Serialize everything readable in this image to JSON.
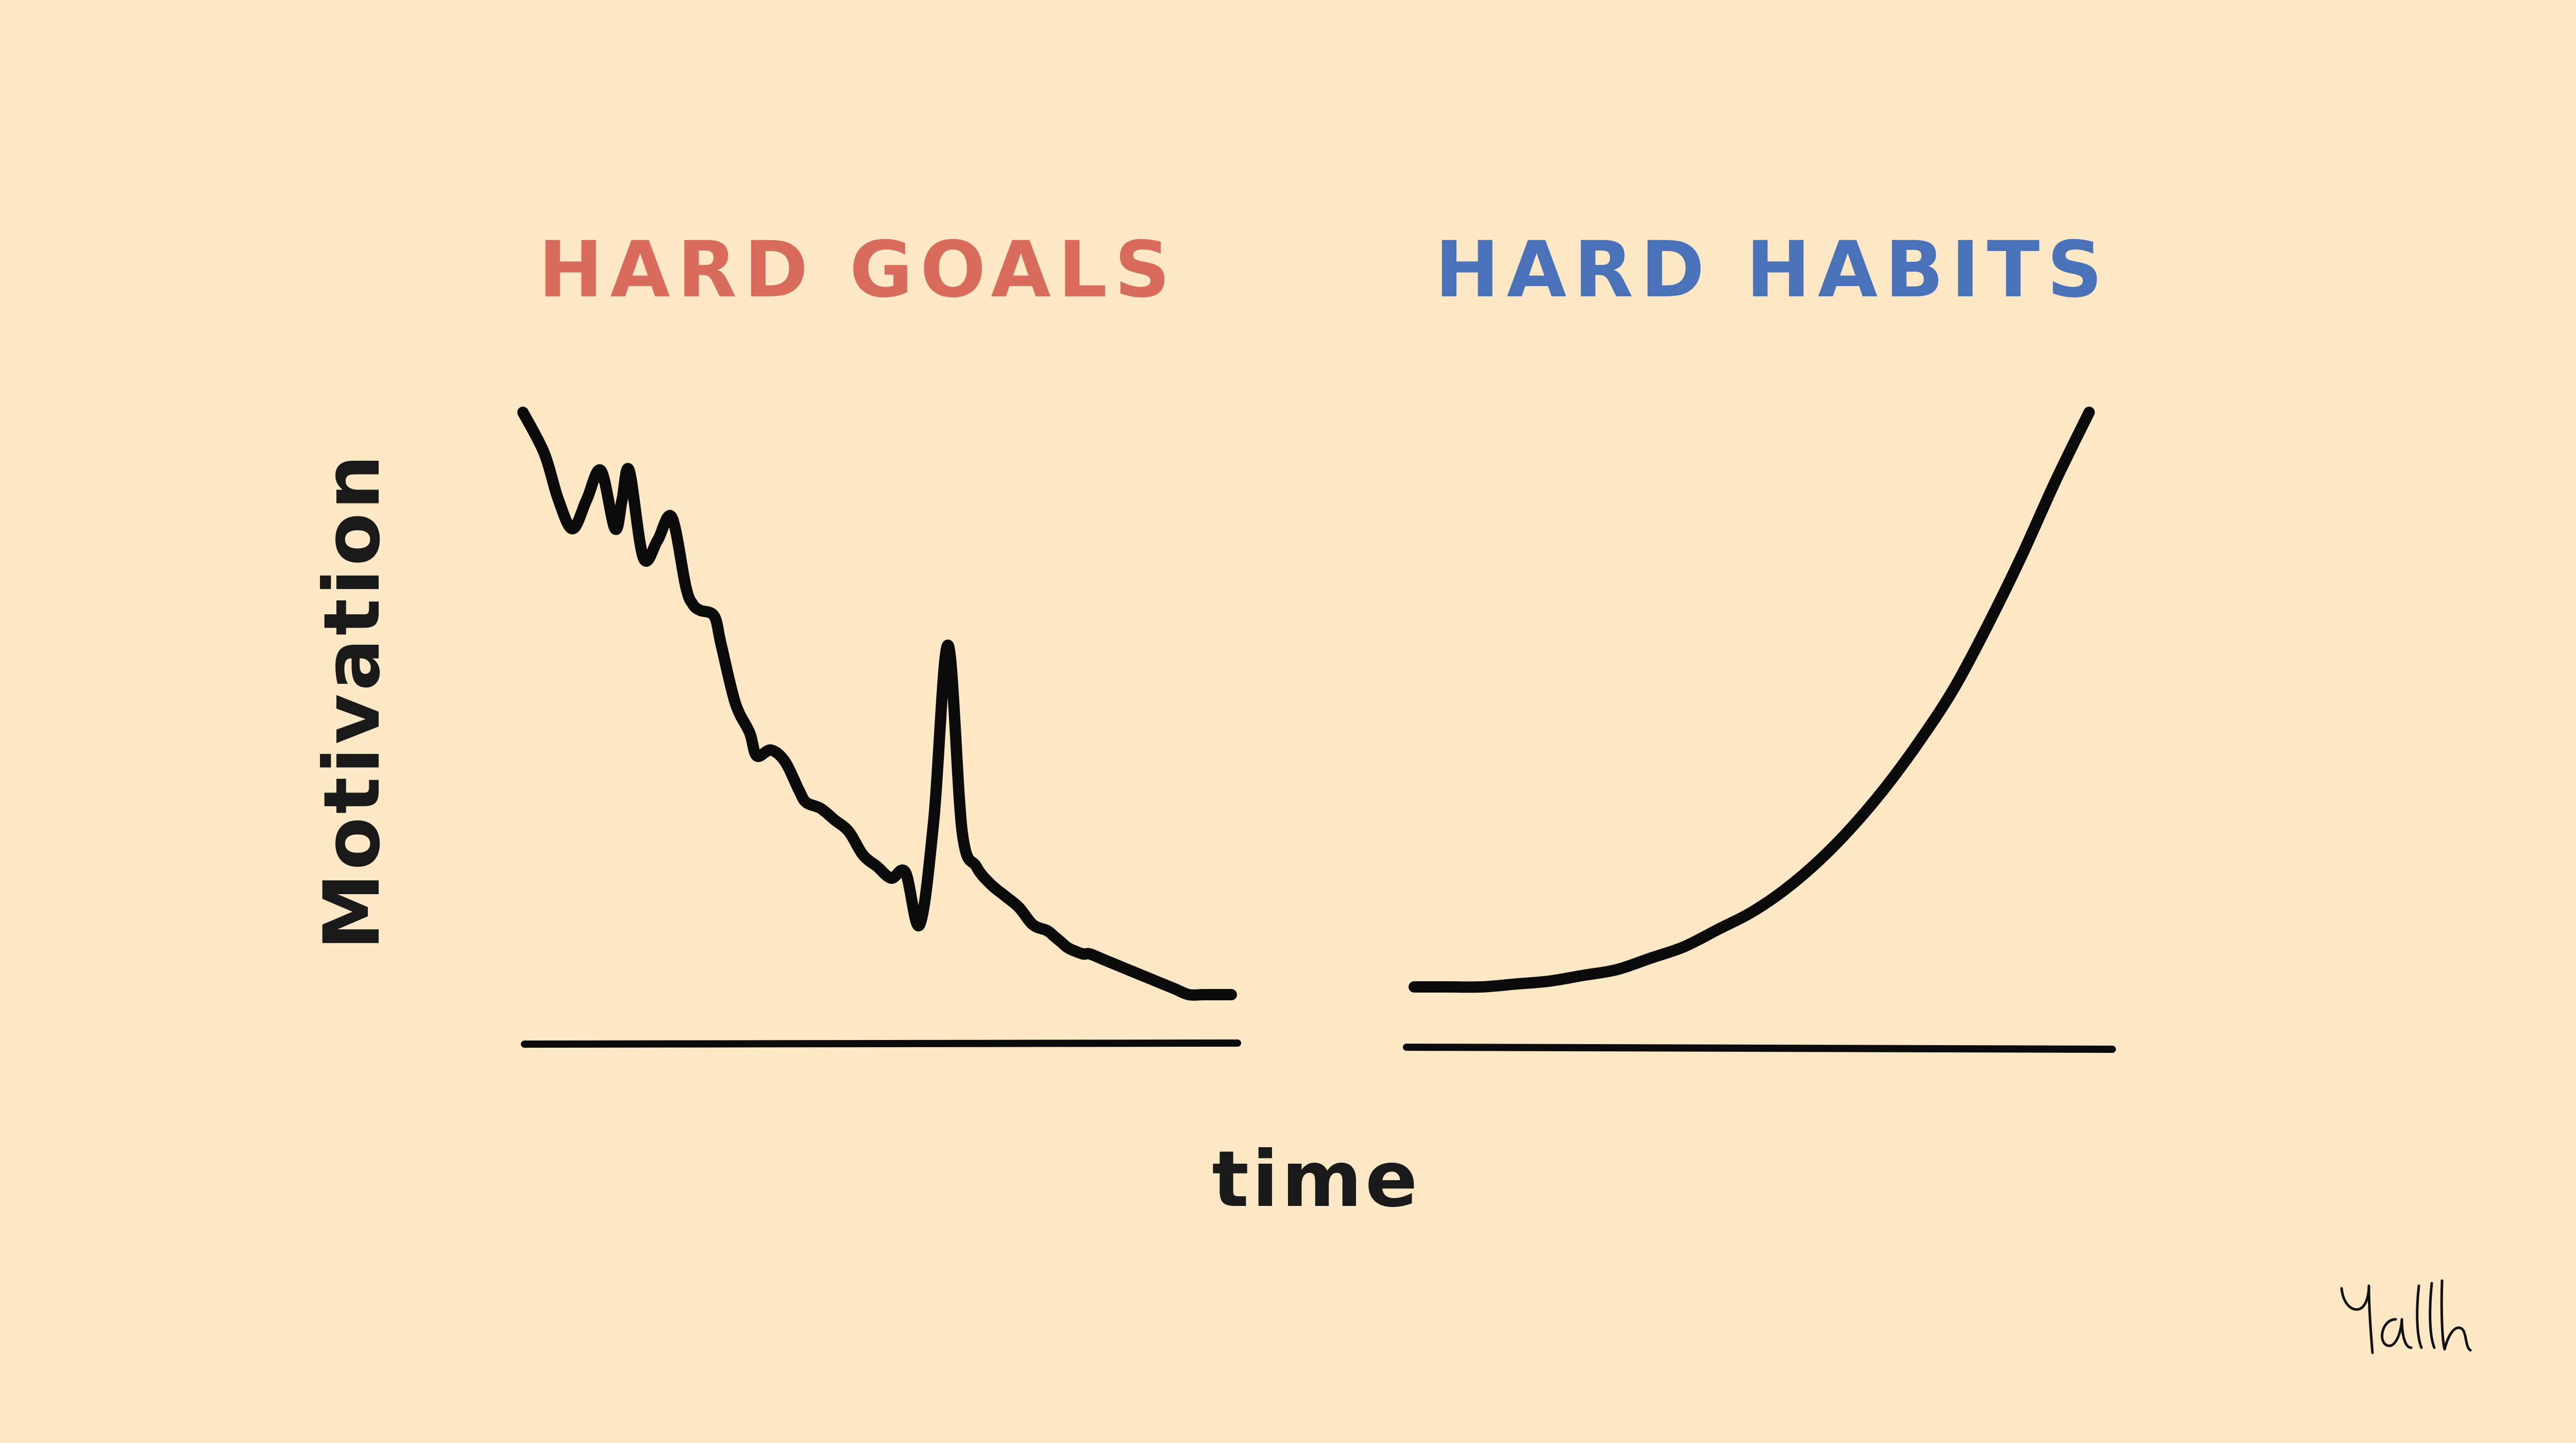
{
  "colors": {
    "background": "#fde8c6",
    "ink": "#0b0b0b",
    "goals_title": "#d86b5b",
    "habits_title": "#4a72b9"
  },
  "chart_data": [
    {
      "type": "line",
      "title": "HARD GOALS",
      "xlabel": "time",
      "ylabel": "Motivation",
      "grid": false,
      "xlim": [
        0,
        100
      ],
      "ylim": [
        0,
        100
      ],
      "series": [
        {
          "x": [
            0,
            3,
            5,
            7,
            9,
            11,
            13,
            14,
            15,
            17,
            19,
            21,
            23,
            24,
            25,
            27,
            28,
            30,
            32,
            33,
            35,
            37,
            39,
            40,
            42,
            44,
            46,
            48,
            50,
            52,
            54,
            56,
            58,
            60,
            62,
            64,
            66,
            68,
            70,
            72,
            74,
            75,
            76,
            77,
            79,
            80,
            82,
            84,
            86,
            88,
            90,
            92,
            94,
            96,
            98,
            100
          ],
          "values": [
            100,
            93,
            85,
            80,
            85,
            90,
            80,
            85,
            90,
            75,
            78,
            82,
            70,
            67,
            66,
            65,
            60,
            50,
            45,
            41,
            42,
            40,
            35,
            33,
            32,
            30,
            28,
            24,
            22,
            20,
            21,
            12,
            30,
            60,
            28,
            22,
            19,
            17,
            15,
            12,
            11,
            10,
            9,
            8,
            7,
            7,
            6,
            5,
            4,
            3,
            2,
            1,
            0,
            0,
            0,
            0
          ]
        }
      ]
    },
    {
      "type": "line",
      "title": "HARD HABITS",
      "xlabel": "time",
      "ylabel": "",
      "grid": false,
      "xlim": [
        0,
        100
      ],
      "ylim": [
        0,
        100
      ],
      "series": [
        {
          "x": [
            0,
            5,
            10,
            15,
            20,
            25,
            30,
            35,
            40,
            45,
            50,
            55,
            60,
            65,
            70,
            75,
            80,
            85,
            90,
            95,
            100
          ],
          "values": [
            0,
            0,
            0,
            0.5,
            1,
            2,
            3,
            5,
            7,
            10,
            13,
            17,
            22,
            28,
            35,
            43,
            52,
            63,
            75,
            88,
            100
          ]
        }
      ]
    }
  ],
  "titles": {
    "goals": "HARD GOALS",
    "habits": "HARD HABITS"
  },
  "axis": {
    "xlabel": "time",
    "ylabel": "Motivation"
  },
  "signature": "Yallh"
}
